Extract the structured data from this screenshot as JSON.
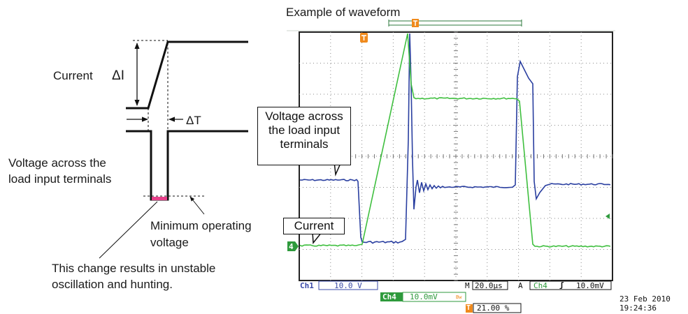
{
  "title": "Example of waveform",
  "left_diagram": {
    "current_label": "Current",
    "delta_i": "ΔI",
    "delta_t": "ΔT",
    "voltage_label_line1": "Voltage across the",
    "voltage_label_line2": "load input terminals",
    "min_voltage_line1": "Minimum operating",
    "min_voltage_line2": "voltage",
    "note_line1": "This change results in unstable",
    "note_line2": "oscillation and hunting."
  },
  "scope": {
    "callout_voltage": [
      "Voltage across",
      "the load input",
      "terminals"
    ],
    "callout_current": "Current",
    "trigger_marker": "T",
    "ch4_marker": "4",
    "ch1_label": "Ch1",
    "ch1_scale": "10.0 V",
    "ch4_label": "Ch4",
    "ch4_scale": "10.0mV",
    "bw_mark": "Bw",
    "timebase_prefix": "M",
    "timebase": "20.0µs",
    "trigger_source_prefix": "A",
    "trigger_channel": "Ch4",
    "trigger_slope": "ʃ",
    "trigger_level": "10.0mV",
    "trigger_pos_marker": "T",
    "trigger_position": "21.00 %",
    "date": "23 Feb 2010",
    "time": "19:24:36"
  },
  "colors": {
    "voltage_trace": "#2a3fa0",
    "current_trace": "#3fbf3f",
    "trigger_orange": "#f08a1c",
    "ch4_green": "#2e9a3c",
    "min_voltage_bar": "#e83f8a"
  }
}
